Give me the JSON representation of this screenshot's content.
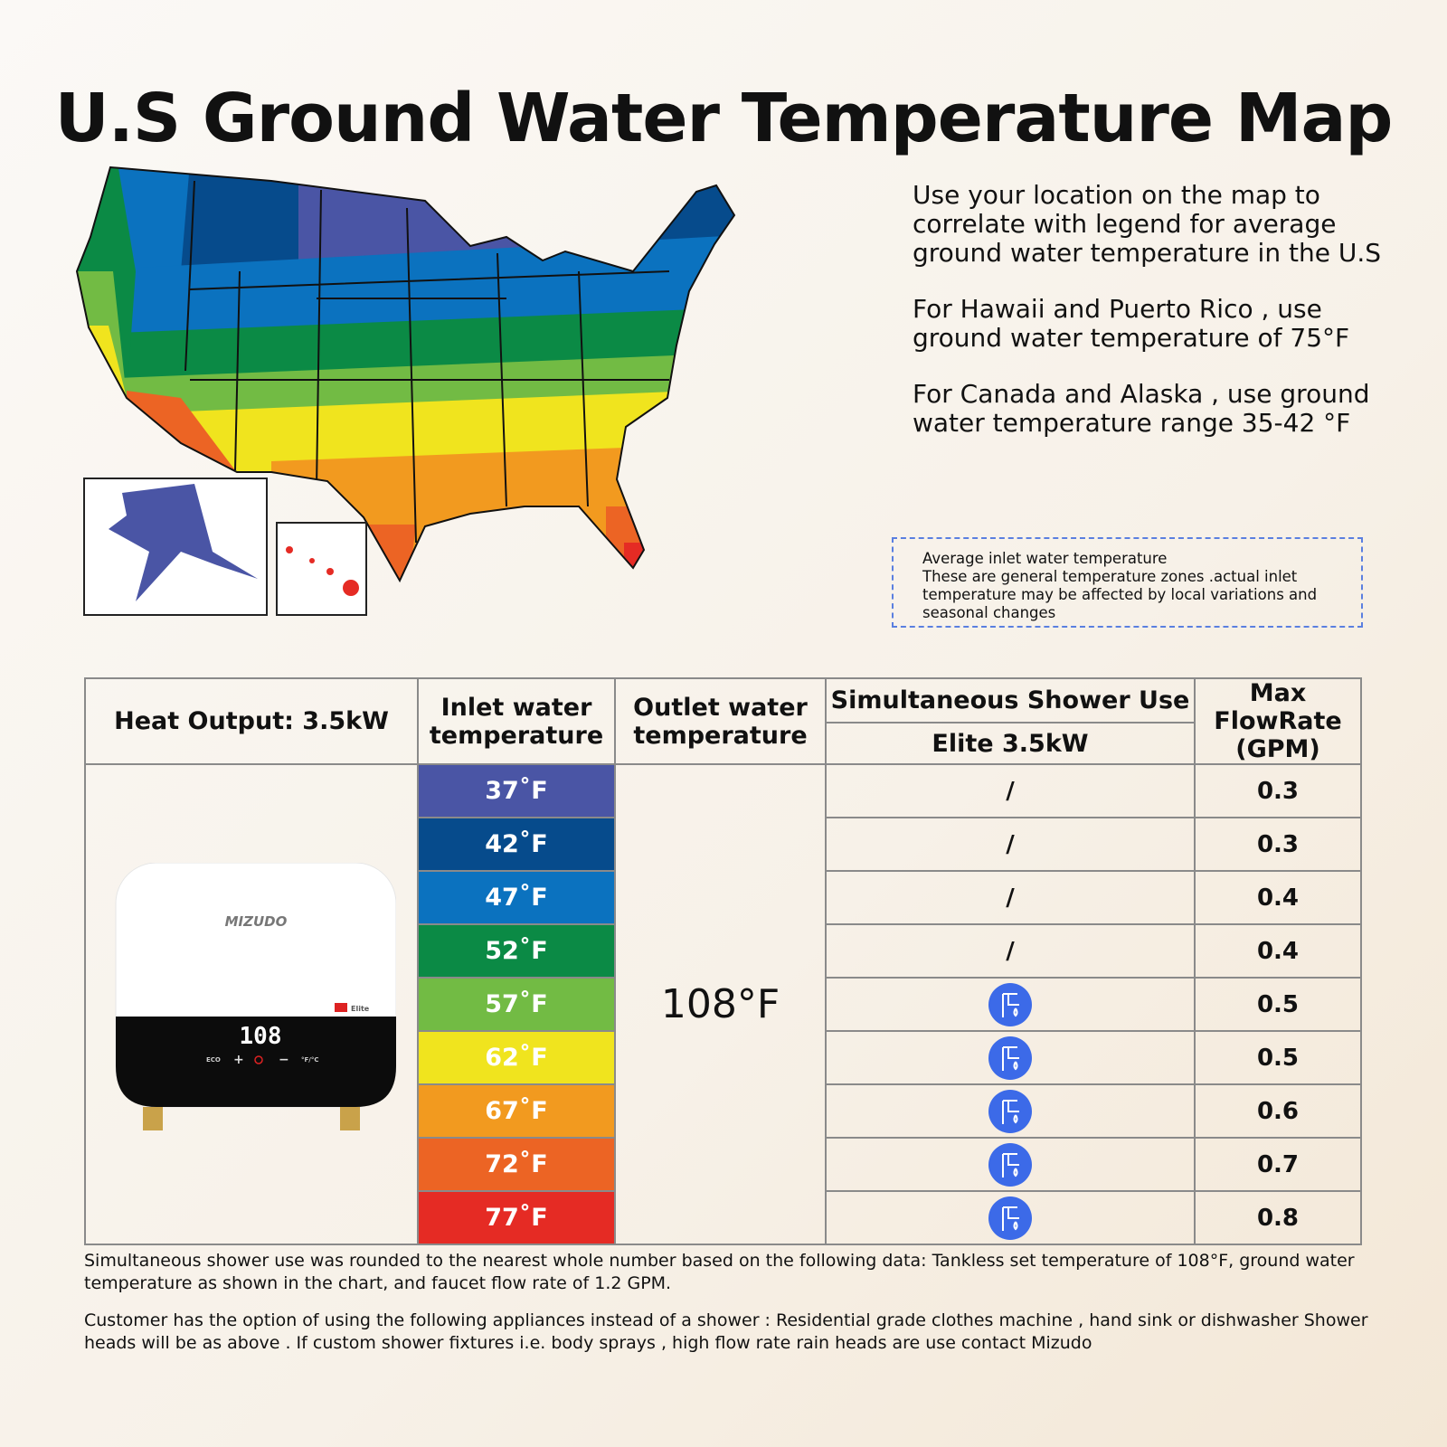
{
  "title": "U.S Ground Water Temperature Map",
  "info": {
    "p1": "Use your location on the map to correlate with legend for average ground water temperature in the U.S",
    "p2": "For Hawaii and Puerto Rico , use ground water temperature of 75°F",
    "p3": "For Canada and Alaska , use ground water temperature range 35-42 °F"
  },
  "note": {
    "line1": "Average inlet water temperature",
    "line2": "These are general temperature zones .actual inlet temperature may be affected by local variations and seasonal changes"
  },
  "table": {
    "heat_output": "Heat Output: 3.5kW",
    "inlet_header": "Inlet water temperature",
    "outlet_header": "Outlet water temperature",
    "shower_header": "Simultaneous Shower Use",
    "model": "Elite 3.5kW",
    "flow_header": "Max FlowRate (GPM)",
    "outlet_value": "108°F",
    "rows": [
      {
        "temp": "37˚F",
        "color": "#4a55a5",
        "shower": "/",
        "flow": "0.3"
      },
      {
        "temp": "42˚F",
        "color": "#064b8c",
        "shower": "/",
        "flow": "0.3"
      },
      {
        "temp": "47˚F",
        "color": "#0b72bf",
        "shower": "/",
        "flow": "0.4"
      },
      {
        "temp": "52˚F",
        "color": "#0b8a45",
        "shower": "/",
        "flow": "0.4"
      },
      {
        "temp": "57˚F",
        "color": "#72bb44",
        "shower": "faucet-icon",
        "flow": "0.5"
      },
      {
        "temp": "62˚F",
        "color": "#f0e41e",
        "shower": "faucet-icon",
        "flow": "0.5"
      },
      {
        "temp": "67˚F",
        "color": "#f29a1f",
        "shower": "faucet-icon",
        "flow": "0.6"
      },
      {
        "temp": "72˚F",
        "color": "#ec6424",
        "shower": "faucet-icon",
        "flow": "0.7"
      },
      {
        "temp": "77˚F",
        "color": "#e52b24",
        "shower": "faucet-icon",
        "flow": "0.8"
      }
    ]
  },
  "product": {
    "brand": "MIZUDO",
    "badge": "Elite",
    "display": "108",
    "eco": "ECO",
    "unit": "°F/°C"
  },
  "footer": {
    "p1": "Simultaneous shower use was rounded to the nearest whole number based on the following data: Tankless set temperature of 108°F, ground water temperature as shown in the chart, and faucet flow rate of  1.2 GPM.",
    "p2": "Customer has the option of using the following appliances instead of a shower : Residential grade clothes machine , hand sink or dishwasher Shower heads will be as above . If custom shower fixtures i.e. body sprays , high flow rate rain heads are use contact Mizudo"
  }
}
